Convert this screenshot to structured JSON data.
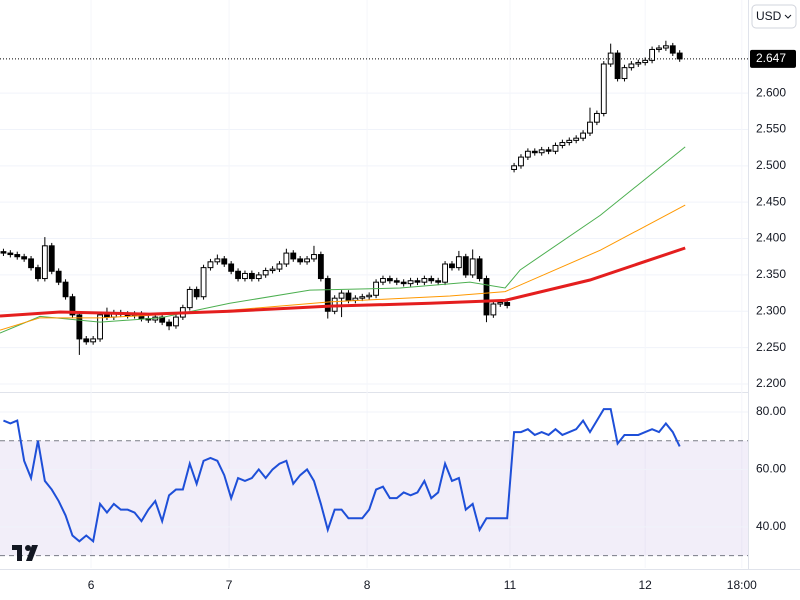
{
  "chart_data": [
    {
      "type": "candlestick",
      "currency": "USD",
      "last_price": 2.647,
      "xlim": [
        -0.5,
        107.9
      ],
      "xticks": [
        {
          "value": 12.7,
          "label": "6"
        },
        {
          "value": 32.7,
          "label": "7"
        },
        {
          "value": 52.7,
          "label": "8"
        },
        {
          "value": 73.4,
          "label": "11"
        },
        {
          "value": 93.0,
          "label": "12"
        },
        {
          "value": 107.0,
          "label": "18:00"
        }
      ],
      "ylim": [
        2.189,
        2.728
      ],
      "yticks": [
        {
          "value": 2.2,
          "label": "2.200"
        },
        {
          "value": 2.25,
          "label": "2.250"
        },
        {
          "value": 2.3,
          "label": "2.300"
        },
        {
          "value": 2.35,
          "label": "2.350"
        },
        {
          "value": 2.4,
          "label": "2.400"
        },
        {
          "value": 2.45,
          "label": "2.450"
        },
        {
          "value": 2.5,
          "label": "2.500"
        },
        {
          "value": 2.55,
          "label": "2.550"
        },
        {
          "value": 2.6,
          "label": "2.600"
        }
      ],
      "up_color": "#ffffff",
      "down_color": "#000000",
      "candles": [
        [
          2.382,
          2.386,
          2.376,
          2.38
        ],
        [
          2.38,
          2.384,
          2.374,
          2.378
        ],
        [
          2.378,
          2.382,
          2.371,
          2.375
        ],
        [
          2.375,
          2.379,
          2.368,
          2.372
        ],
        [
          2.372,
          2.376,
          2.356,
          2.36
        ],
        [
          2.36,
          2.364,
          2.341,
          2.345
        ],
        [
          2.345,
          2.402,
          2.341,
          2.39
        ],
        [
          2.39,
          2.394,
          2.351,
          2.355
        ],
        [
          2.355,
          2.359,
          2.336,
          2.34
        ],
        [
          2.34,
          2.344,
          2.316,
          2.32
        ],
        [
          2.32,
          2.324,
          2.291,
          2.295
        ],
        [
          2.295,
          2.299,
          2.24,
          2.262
        ],
        [
          2.262,
          2.266,
          2.254,
          2.258
        ],
        [
          2.258,
          2.266,
          2.254,
          2.262
        ],
        [
          2.262,
          2.299,
          2.258,
          2.295
        ],
        [
          2.295,
          2.305,
          2.288,
          2.292
        ],
        [
          2.292,
          2.302,
          2.288,
          2.298
        ],
        [
          2.298,
          2.302,
          2.292,
          2.296
        ],
        [
          2.296,
          2.3,
          2.29,
          2.294
        ],
        [
          2.294,
          2.3,
          2.29,
          2.296
        ],
        [
          2.296,
          2.3,
          2.286,
          2.29
        ],
        [
          2.29,
          2.294,
          2.284,
          2.288
        ],
        [
          2.288,
          2.296,
          2.284,
          2.292
        ],
        [
          2.292,
          2.296,
          2.281,
          2.285
        ],
        [
          2.285,
          2.289,
          2.274,
          2.28
        ],
        [
          2.28,
          2.296,
          2.276,
          2.292
        ],
        [
          2.292,
          2.309,
          2.288,
          2.305
        ],
        [
          2.305,
          2.334,
          2.301,
          2.33
        ],
        [
          2.33,
          2.334,
          2.316,
          2.32
        ],
        [
          2.32,
          2.364,
          2.316,
          2.36
        ],
        [
          2.36,
          2.372,
          2.356,
          2.368
        ],
        [
          2.368,
          2.378,
          2.364,
          2.372
        ],
        [
          2.372,
          2.376,
          2.361,
          2.365
        ],
        [
          2.365,
          2.369,
          2.351,
          2.355
        ],
        [
          2.355,
          2.359,
          2.341,
          2.345
        ],
        [
          2.345,
          2.356,
          2.341,
          2.352
        ],
        [
          2.352,
          2.356,
          2.341,
          2.345
        ],
        [
          2.345,
          2.354,
          2.341,
          2.35
        ],
        [
          2.35,
          2.36,
          2.346,
          2.356
        ],
        [
          2.356,
          2.362,
          2.352,
          2.358
        ],
        [
          2.358,
          2.369,
          2.354,
          2.365
        ],
        [
          2.365,
          2.386,
          2.361,
          2.38
        ],
        [
          2.38,
          2.384,
          2.368,
          2.372
        ],
        [
          2.372,
          2.376,
          2.364,
          2.368
        ],
        [
          2.368,
          2.376,
          2.364,
          2.372
        ],
        [
          2.372,
          2.39,
          2.368,
          2.378
        ],
        [
          2.378,
          2.382,
          2.341,
          2.345
        ],
        [
          2.345,
          2.349,
          2.29,
          2.3
        ],
        [
          2.3,
          2.322,
          2.296,
          2.318
        ],
        [
          2.318,
          2.329,
          2.292,
          2.325
        ],
        [
          2.325,
          2.329,
          2.311,
          2.315
        ],
        [
          2.315,
          2.322,
          2.311,
          2.318
        ],
        [
          2.318,
          2.324,
          2.314,
          2.32
        ],
        [
          2.32,
          2.326,
          2.316,
          2.322
        ],
        [
          2.322,
          2.344,
          2.318,
          2.34
        ],
        [
          2.34,
          2.349,
          2.336,
          2.345
        ],
        [
          2.345,
          2.349,
          2.338,
          2.342
        ],
        [
          2.342,
          2.346,
          2.336,
          2.34
        ],
        [
          2.34,
          2.344,
          2.334,
          2.338
        ],
        [
          2.338,
          2.346,
          2.334,
          2.342
        ],
        [
          2.342,
          2.346,
          2.336,
          2.34
        ],
        [
          2.34,
          2.349,
          2.336,
          2.345
        ],
        [
          2.345,
          2.349,
          2.338,
          2.342
        ],
        [
          2.342,
          2.346,
          2.336,
          2.34
        ],
        [
          2.34,
          2.369,
          2.336,
          2.365
        ],
        [
          2.365,
          2.369,
          2.356,
          2.36
        ],
        [
          2.36,
          2.383,
          2.356,
          2.375
        ],
        [
          2.375,
          2.379,
          2.346,
          2.35
        ],
        [
          2.35,
          2.385,
          2.346,
          2.372
        ],
        [
          2.372,
          2.376,
          2.341,
          2.345
        ],
        [
          2.345,
          2.349,
          2.285,
          2.295
        ],
        [
          2.295,
          2.314,
          2.291,
          2.31
        ],
        [
          2.31,
          2.316,
          2.306,
          2.312
        ],
        [
          2.312,
          2.316,
          2.304,
          2.308
        ],
        [
          2.495,
          2.504,
          2.491,
          2.5
        ],
        [
          2.5,
          2.516,
          2.496,
          2.512
        ],
        [
          2.512,
          2.524,
          2.508,
          2.52
        ],
        [
          2.52,
          2.524,
          2.514,
          2.518
        ],
        [
          2.518,
          2.526,
          2.514,
          2.522
        ],
        [
          2.522,
          2.526,
          2.516,
          2.52
        ],
        [
          2.52,
          2.532,
          2.516,
          2.528
        ],
        [
          2.528,
          2.536,
          2.524,
          2.532
        ],
        [
          2.532,
          2.539,
          2.528,
          2.535
        ],
        [
          2.535,
          2.542,
          2.531,
          2.538
        ],
        [
          2.538,
          2.549,
          2.534,
          2.545
        ],
        [
          2.545,
          2.58,
          2.541,
          2.56
        ],
        [
          2.56,
          2.576,
          2.556,
          2.572
        ],
        [
          2.572,
          2.644,
          2.568,
          2.64
        ],
        [
          2.64,
          2.668,
          2.636,
          2.655
        ],
        [
          2.655,
          2.659,
          2.616,
          2.62
        ],
        [
          2.62,
          2.639,
          2.616,
          2.635
        ],
        [
          2.635,
          2.644,
          2.631,
          2.64
        ],
        [
          2.64,
          2.646,
          2.636,
          2.642
        ],
        [
          2.642,
          2.649,
          2.638,
          2.645
        ],
        [
          2.645,
          2.664,
          2.641,
          2.66
        ],
        [
          2.66,
          2.666,
          2.656,
          2.662
        ],
        [
          2.662,
          2.672,
          2.658,
          2.665
        ],
        [
          2.665,
          2.669,
          2.651,
          2.655
        ],
        [
          2.655,
          2.659,
          2.643,
          2.647
        ]
      ],
      "series": [
        {
          "color": "#4caf50",
          "width": 1,
          "x": [
            -0.5,
            5.3,
            14.0,
            22.7,
            32.8,
            44.4,
            57.5,
            67.6,
            72.7,
            74.9,
            86.5,
            98.8
          ],
          "values": [
            2.27,
            2.293,
            2.285,
            2.291,
            2.311,
            2.329,
            2.332,
            2.34,
            2.332,
            2.357,
            2.432,
            2.526
          ]
        },
        {
          "color": "#ff9800",
          "width": 1,
          "x": [
            -0.5,
            5.3,
            14.0,
            28.5,
            47.3,
            64.7,
            72.7,
            86.5,
            98.8
          ],
          "values": [
            2.274,
            2.291,
            2.291,
            2.298,
            2.313,
            2.321,
            2.327,
            2.384,
            2.446
          ]
        },
        {
          "color": "#e41e1e",
          "width": 3,
          "x": [
            -0.5,
            8.2,
            21.2,
            32.8,
            47.3,
            61.8,
            72.7,
            85.0,
            98.8
          ],
          "values": [
            2.2935,
            2.299,
            2.296,
            2.3,
            2.307,
            2.311,
            2.315,
            2.343,
            2.387
          ]
        }
      ]
    },
    {
      "type": "line",
      "xlim": [
        -0.5,
        107.9
      ],
      "ylim": [
        25.7,
        86.6
      ],
      "yticks": [
        {
          "value": 40,
          "label": "40.00"
        },
        {
          "value": 60,
          "label": "60.00"
        },
        {
          "value": 80,
          "label": "80.00"
        }
      ],
      "levels": [
        70,
        30
      ],
      "color": "#1e4fd8",
      "values": [
        77,
        76,
        77,
        63,
        57,
        70,
        56,
        53,
        49,
        44,
        37,
        35,
        37,
        35,
        48,
        45,
        48,
        46,
        46,
        45,
        42,
        46,
        49,
        42,
        51,
        53,
        53,
        62,
        55,
        63,
        64,
        63,
        58,
        50,
        57,
        56,
        57,
        60,
        57,
        60,
        62,
        63,
        55,
        58,
        60,
        56,
        48,
        39,
        46,
        46,
        43,
        43,
        43,
        46,
        53,
        54,
        50,
        50,
        52,
        51,
        52,
        56,
        50,
        52,
        62,
        56,
        57,
        46,
        48,
        39,
        43,
        43,
        43,
        43,
        73,
        73,
        74,
        72,
        73,
        72,
        74,
        72,
        73,
        74,
        77,
        73,
        77,
        81,
        81,
        69,
        72,
        72,
        72,
        73,
        74,
        73,
        76,
        73,
        68
      ]
    }
  ]
}
